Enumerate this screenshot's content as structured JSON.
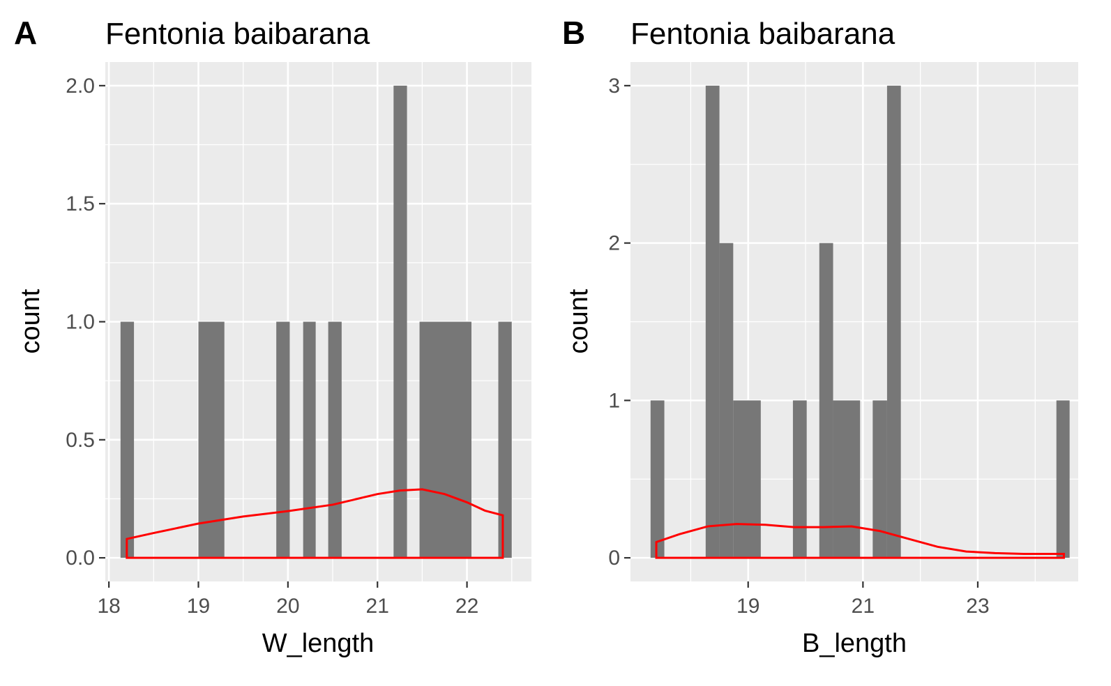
{
  "chart_data": [
    {
      "type": "bar",
      "panel_label": "A",
      "title": "Fentonia baibarana",
      "xlabel": "W_length",
      "ylabel": "count",
      "xlim": [
        17.96,
        22.72
      ],
      "ylim": [
        -0.1,
        2.1
      ],
      "x_ticks": [
        {
          "value": 18,
          "label": "18"
        },
        {
          "value": 19,
          "label": "19"
        },
        {
          "value": 20,
          "label": "20"
        },
        {
          "value": 21,
          "label": "21"
        },
        {
          "value": 22,
          "label": "22"
        }
      ],
      "y_ticks": [
        {
          "value": 0,
          "label": "0.0"
        },
        {
          "value": 0.5,
          "label": "0.5"
        },
        {
          "value": 1,
          "label": "1.0"
        },
        {
          "value": 1.5,
          "label": "1.5"
        },
        {
          "value": 2,
          "label": "2.0"
        }
      ],
      "bins": [
        {
          "x0": 18.13,
          "x1": 18.28,
          "count": 1
        },
        {
          "x0": 19.0,
          "x1": 19.29,
          "count": 1
        },
        {
          "x0": 19.87,
          "x1": 20.02,
          "count": 1
        },
        {
          "x0": 20.17,
          "x1": 20.31,
          "count": 1
        },
        {
          "x0": 20.45,
          "x1": 20.6,
          "count": 1
        },
        {
          "x0": 21.18,
          "x1": 21.33,
          "count": 2
        },
        {
          "x0": 21.47,
          "x1": 22.05,
          "count": 1
        },
        {
          "x0": 22.35,
          "x1": 22.5,
          "count": 1
        }
      ],
      "density": {
        "x": [
          18.2,
          18.5,
          19.0,
          19.5,
          20.0,
          20.5,
          21.0,
          21.25,
          21.5,
          21.75,
          22.0,
          22.2,
          22.4
        ],
        "y": [
          0.08,
          0.105,
          0.145,
          0.175,
          0.198,
          0.225,
          0.27,
          0.285,
          0.29,
          0.27,
          0.235,
          0.2,
          0.18
        ]
      },
      "colors": {
        "bar": "#777777",
        "density": "#ff0000",
        "panel_bg": "#ebebeb",
        "grid": "#ffffff"
      },
      "grid": true
    },
    {
      "type": "bar",
      "panel_label": "B",
      "title": "Fentonia baibarana",
      "xlabel": "B_length",
      "ylabel": "count",
      "xlim": [
        16.95,
        24.75
      ],
      "ylim": [
        -0.15,
        3.15
      ],
      "x_ticks": [
        {
          "value": 19,
          "label": "19"
        },
        {
          "value": 21,
          "label": "21"
        },
        {
          "value": 23,
          "label": "23"
        }
      ],
      "y_ticks": [
        {
          "value": 0,
          "label": "0"
        },
        {
          "value": 1,
          "label": "1"
        },
        {
          "value": 2,
          "label": "2"
        },
        {
          "value": 3,
          "label": "3"
        }
      ],
      "bins": [
        {
          "x0": 17.3,
          "x1": 17.54,
          "count": 1
        },
        {
          "x0": 18.26,
          "x1": 18.5,
          "count": 3
        },
        {
          "x0": 18.5,
          "x1": 18.74,
          "count": 2
        },
        {
          "x0": 18.74,
          "x1": 19.22,
          "count": 1
        },
        {
          "x0": 19.78,
          "x1": 20.02,
          "count": 1
        },
        {
          "x0": 20.24,
          "x1": 20.48,
          "count": 2
        },
        {
          "x0": 20.48,
          "x1": 20.95,
          "count": 1
        },
        {
          "x0": 21.17,
          "x1": 21.42,
          "count": 1
        },
        {
          "x0": 21.42,
          "x1": 21.66,
          "count": 3
        },
        {
          "x0": 24.37,
          "x1": 24.6,
          "count": 1
        }
      ],
      "density": {
        "x": [
          17.4,
          17.8,
          18.3,
          18.8,
          19.3,
          19.8,
          20.3,
          20.8,
          21.3,
          21.8,
          22.3,
          22.8,
          23.3,
          23.8,
          24.3,
          24.5
        ],
        "y": [
          0.1,
          0.15,
          0.2,
          0.215,
          0.21,
          0.195,
          0.195,
          0.2,
          0.17,
          0.12,
          0.07,
          0.04,
          0.03,
          0.025,
          0.025,
          0.025
        ]
      },
      "colors": {
        "bar": "#777777",
        "density": "#ff0000",
        "panel_bg": "#ebebeb",
        "grid": "#ffffff"
      },
      "grid": true
    }
  ]
}
